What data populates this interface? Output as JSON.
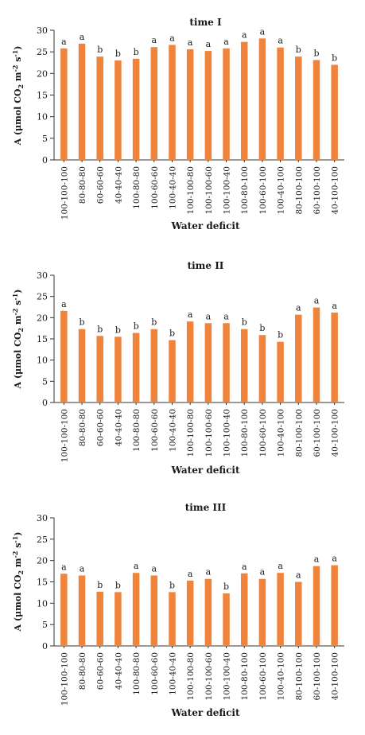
{
  "colors": {
    "bar": "#f0843d",
    "axis": "#333333"
  },
  "ylabel": {
    "prefix": "A (μmol CO",
    "sub": "2",
    "mid": " m",
    "sup1": "-2",
    "mid2": " s",
    "sup2": "-1",
    "suffix": ")"
  },
  "chart_data": [
    {
      "type": "bar",
      "title": "time I",
      "xlabel": "Water deficit",
      "ylim": [
        0,
        30
      ],
      "yticks": [
        0,
        5,
        10,
        15,
        20,
        25,
        30
      ],
      "categories": [
        "100-100-100",
        "80-80-80",
        "60-60-60",
        "40-40-40",
        "100-80-80",
        "100-60-60",
        "100-40-40",
        "100-100-80",
        "100-100-60",
        "100-100-40",
        "100-80-100",
        "100-60-100",
        "100-40-100",
        "80-100-100",
        "60-100-100",
        "40-100-100"
      ],
      "values": [
        25.8,
        26.9,
        23.9,
        23.0,
        23.4,
        26.1,
        26.6,
        25.6,
        25.2,
        25.8,
        27.3,
        28.1,
        26.0,
        23.9,
        23.1,
        22.0
      ],
      "letters": [
        "a",
        "a",
        "b",
        "b",
        "b",
        "a",
        "a",
        "a",
        "a",
        "a",
        "a",
        "a",
        "a",
        "b",
        "b",
        "b"
      ]
    },
    {
      "type": "bar",
      "title": "time II",
      "xlabel": "Water deficit",
      "ylim": [
        0,
        30
      ],
      "yticks": [
        0,
        5,
        10,
        15,
        20,
        25,
        30
      ],
      "categories": [
        "100-100-100",
        "80-80-80",
        "60-60-60",
        "40-40-40",
        "100-80-80",
        "100-60-60",
        "100-40-40",
        "100-100-80",
        "100-100-60",
        "100-100-40",
        "100-80-100",
        "100-60-100",
        "100-40-100",
        "80-100-100",
        "60-100-100",
        "40-100-100"
      ],
      "values": [
        21.6,
        17.3,
        15.7,
        15.5,
        16.4,
        17.3,
        14.7,
        19.1,
        18.7,
        18.7,
        17.3,
        15.9,
        14.3,
        20.7,
        22.4,
        21.2
      ],
      "letters": [
        "a",
        "b",
        "b",
        "b",
        "b",
        "b",
        "b",
        "a",
        "a",
        "a",
        "b",
        "b",
        "b",
        "a",
        "a",
        "a"
      ]
    },
    {
      "type": "bar",
      "title": "time III",
      "xlabel": "Water deficit",
      "ylim": [
        0,
        30
      ],
      "yticks": [
        0,
        5,
        10,
        15,
        20,
        25,
        30
      ],
      "categories": [
        "100-100-100",
        "80-80-80",
        "60-60-60",
        "40-40-40",
        "100-80-80",
        "100-60-60",
        "100-40-40",
        "100-100-80",
        "100-100-60",
        "100-100-40",
        "100-80-100",
        "100-60-100",
        "100-40-100",
        "80-100-100",
        "60-100-100",
        "40-100-100"
      ],
      "values": [
        16.9,
        16.5,
        12.7,
        12.6,
        17.1,
        16.5,
        12.6,
        15.3,
        15.7,
        12.3,
        17.0,
        15.7,
        17.1,
        15.0,
        18.7,
        18.9
      ],
      "letters": [
        "a",
        "a",
        "b",
        "b",
        "a",
        "a",
        "b",
        "a",
        "a",
        "b",
        "a",
        "a",
        "a",
        "a",
        "a",
        "a"
      ]
    }
  ]
}
